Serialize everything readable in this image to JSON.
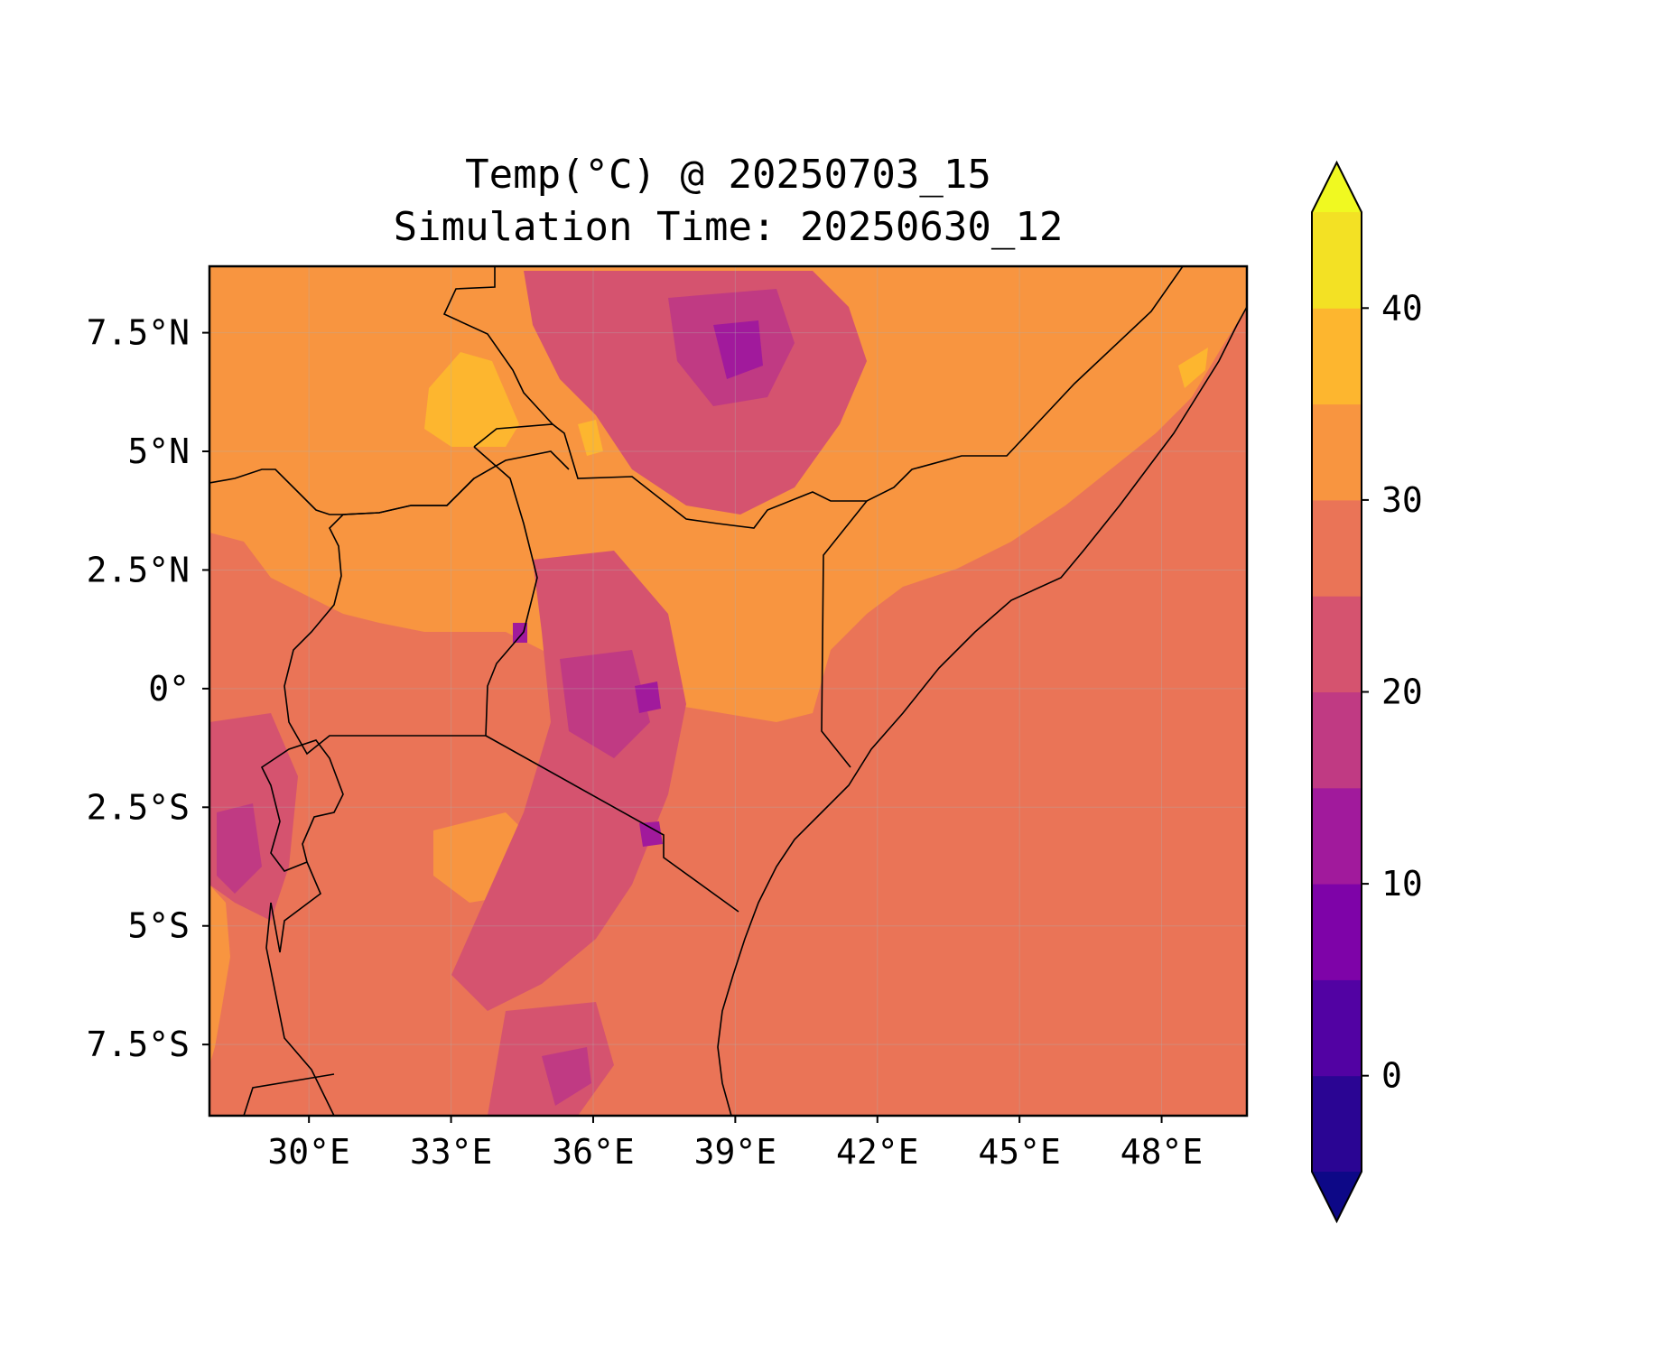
{
  "map": {
    "title": "Temp(°C) @ 20250703_15",
    "subtitle": "Simulation Time: 20250630_12",
    "x_ticks": [
      "30°E",
      "33°E",
      "36°E",
      "39°E",
      "42°E",
      "45°E",
      "48°E"
    ],
    "y_ticks": [
      "7.5°N",
      "5°N",
      "2.5°N",
      "0°",
      "2.5°S",
      "5°S",
      "7.5°S"
    ],
    "extent": {
      "lon_min": 27.9,
      "lon_max": 49.8,
      "lat_min": -9.0,
      "lat_max": 8.9
    },
    "grid": true
  },
  "colorbar": {
    "ticks": [
      "0",
      "10",
      "20",
      "30",
      "40"
    ],
    "range": [
      -5,
      45
    ],
    "levels": [
      -5,
      0,
      5,
      10,
      15,
      20,
      25,
      30,
      35,
      40,
      45
    ],
    "extend": "both",
    "colors": [
      "#0d0887",
      "#2a0593",
      "#5202a3",
      "#7e03a8",
      "#a11a9c",
      "#c03a83",
      "#d5536f",
      "#ea7457",
      "#f89540",
      "#fdb62f",
      "#f3e124",
      "#f0f921"
    ]
  },
  "colors": {
    "ocean": "#ea7457",
    "land_warm": "#f89540",
    "land_hot": "#fdb62f",
    "highland_mid": "#d5536f",
    "highland_cool": "#c03a83",
    "highland_cold": "#a11a9c",
    "peak": "#7e03a8"
  }
}
